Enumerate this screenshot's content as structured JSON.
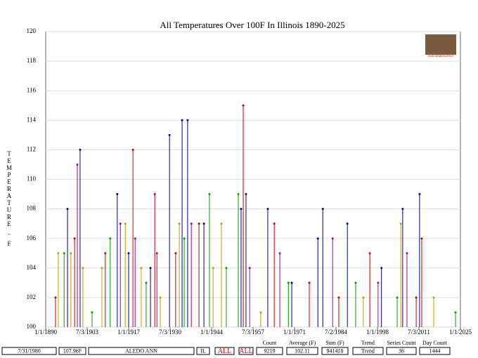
{
  "chart_data": {
    "type": "stem",
    "title": "All Temperatures Over 100F In Illinois 1890-2025",
    "y_label": "TEMPERATURE - F",
    "xlim": [
      1890,
      2025
    ],
    "xticks": [
      {
        "value": 1890,
        "label": "1/1/1890"
      },
      {
        "value": 1903.5,
        "label": "7/3/1903"
      },
      {
        "value": 1917,
        "label": "1/1/1917"
      },
      {
        "value": 1930.5,
        "label": "7/3/1930"
      },
      {
        "value": 1944,
        "label": "1/1/1944"
      },
      {
        "value": 1957.5,
        "label": "7/3/1957"
      },
      {
        "value": 1971,
        "label": "1/1/1971"
      },
      {
        "value": 1984.5,
        "label": "7/2/1984"
      },
      {
        "value": 1998,
        "label": "1/1/1998"
      },
      {
        "value": 2011.5,
        "label": "7/3/2011"
      },
      {
        "value": 2025,
        "label": "1/1/2025"
      }
    ],
    "ylim": [
      100,
      120
    ],
    "yticks": [
      100,
      102,
      104,
      106,
      108,
      110,
      112,
      114,
      116,
      118,
      120
    ],
    "grid": true,
    "series": [
      {
        "color": "#00008b",
        "x": [
          1897.1,
          1901.2,
          1913.3,
          1917,
          1924.1,
          1930.3,
          1934.4,
          1936.2,
          1941.5,
          1953.6,
          1955.2,
          1962.3,
          1970.1,
          1978.6,
          1980.2,
          1988.2,
          1999.3,
          2006.2,
          2011.7
        ],
        "values": [
          108,
          112,
          109,
          105,
          104,
          113,
          114,
          114,
          107,
          108,
          109,
          108,
          103,
          106,
          108,
          107,
          104,
          108,
          109
        ]
      },
      {
        "color": "#c00000",
        "x": [
          1893.2,
          1899.4,
          1909.4,
          1918.4,
          1925.5,
          1932.3,
          1939.9,
          1954.3,
          1964.4,
          1975.8,
          1985.4,
          1995.5,
          2010.6,
          2012.4
        ],
        "values": [
          102,
          106,
          105,
          112,
          109,
          105,
          107,
          115,
          107,
          103,
          102,
          105,
          102,
          106
        ]
      },
      {
        "color": "#00a000",
        "x": [
          1896,
          1905.1,
          1911,
          1922.7,
          1935.1,
          1943.3,
          1948.8,
          1952.7,
          1969,
          1990.9,
          2004.4,
          2023.4
        ],
        "values": [
          105,
          101,
          106,
          103,
          106,
          109,
          104,
          109,
          103,
          103,
          102,
          101
        ]
      },
      {
        "color": "#a000a0",
        "x": [
          1900.3,
          1914.3,
          1919.1,
          1926.2,
          1937.4,
          1956.4,
          1966.2,
          1983.4,
          1998.2,
          2007.6
        ],
        "values": [
          111,
          107,
          106,
          105,
          107,
          104,
          105,
          106,
          103,
          105
        ]
      },
      {
        "color": "#b8a000",
        "x": [
          1894.1,
          1898.2,
          1902.1,
          1908.3,
          1915.9,
          1921.1,
          1927.3,
          1933.5,
          1944.5,
          1947.2,
          1960,
          1993.4,
          2005.6,
          2016.3
        ],
        "values": [
          105,
          105,
          104,
          104,
          107,
          104,
          102,
          107,
          104,
          107,
          101,
          102,
          107,
          102
        ]
      }
    ]
  },
  "logo_text": "realclimatescience",
  "footer": {
    "fields": [
      "7/31/1980",
      "107.96F",
      "ALEDO ANN",
      "IL",
      "ALL",
      "ALL"
    ],
    "stats": [
      {
        "label": "Count",
        "value": 9219
      },
      {
        "label": "Average (F)",
        "value": 102.11
      },
      {
        "label": "Sum (F)",
        "value": 941418
      },
      {
        "label": "Trend",
        "value": "Trend"
      },
      {
        "label": "Series Count",
        "value": 36
      },
      {
        "label": "Day Count",
        "value": 1444
      }
    ]
  }
}
